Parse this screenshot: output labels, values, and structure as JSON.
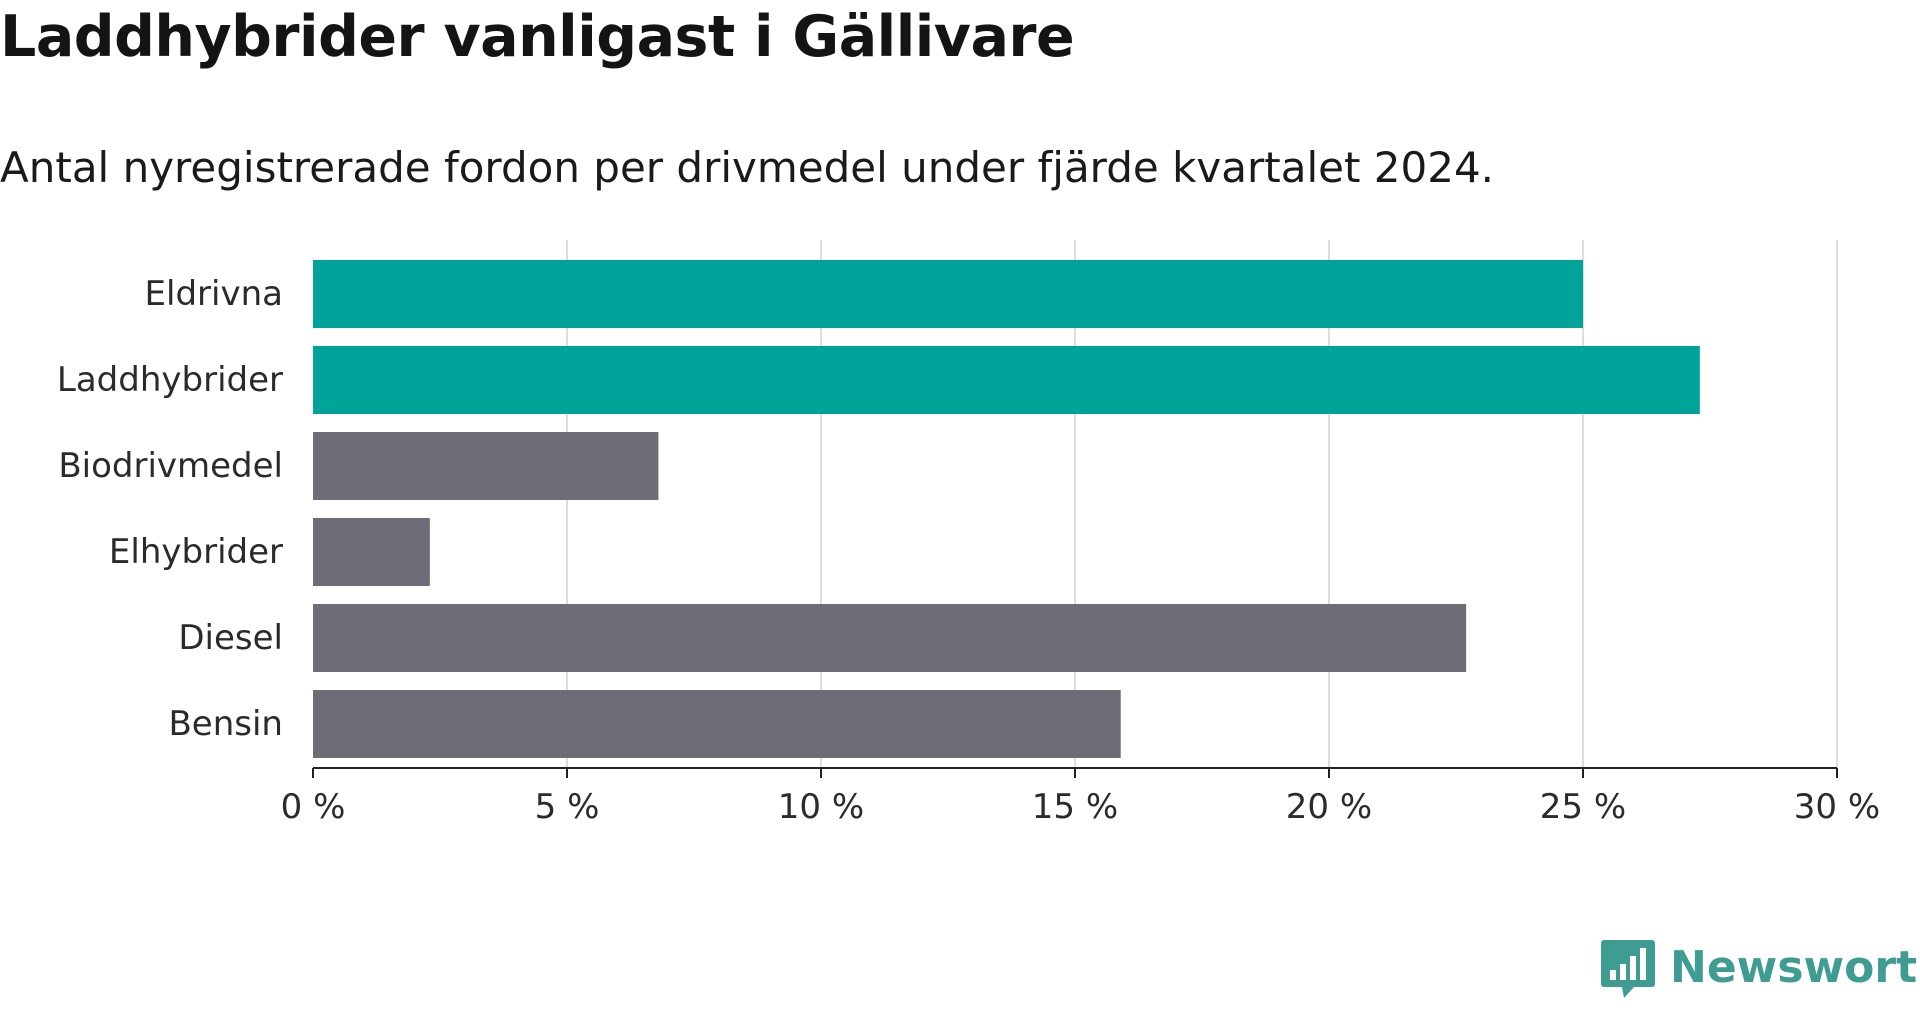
{
  "title": "Laddhybrider vanligast i Gällivare",
  "subtitle": "Antal nyregistrerade fordon per drivmedel under fjärde kvartalet 2024.",
  "brand": {
    "name": "Newsworthy",
    "logo_icon": "bar-chart-speech-bubble-icon",
    "color": "#3e9c92"
  },
  "chart_data": {
    "type": "bar",
    "orientation": "horizontal",
    "title": "Laddhybrider vanligast i Gällivare",
    "subtitle": "Antal nyregistrerade fordon per drivmedel under fjärde kvartalet 2024.",
    "categories": [
      "Eldrivna",
      "Laddhybrider",
      "Biodrivmedel",
      "Elhybrider",
      "Diesel",
      "Bensin"
    ],
    "values": [
      25.0,
      27.3,
      6.8,
      2.3,
      22.7,
      15.9
    ],
    "highlight": [
      true,
      true,
      false,
      false,
      false,
      false
    ],
    "colors": {
      "highlight": "#00a39a",
      "default": "#6e6d76",
      "grid": "#dddddd",
      "axis": "#222222"
    },
    "xlim": [
      0,
      30
    ],
    "xticks": [
      0,
      5,
      10,
      15,
      20,
      25,
      30
    ],
    "xtick_labels": [
      "0 %",
      "5 %",
      "10 %",
      "15 %",
      "20 %",
      "25 %",
      "30 %"
    ],
    "xlabel": "",
    "ylabel": "",
    "grid": "vertical"
  }
}
